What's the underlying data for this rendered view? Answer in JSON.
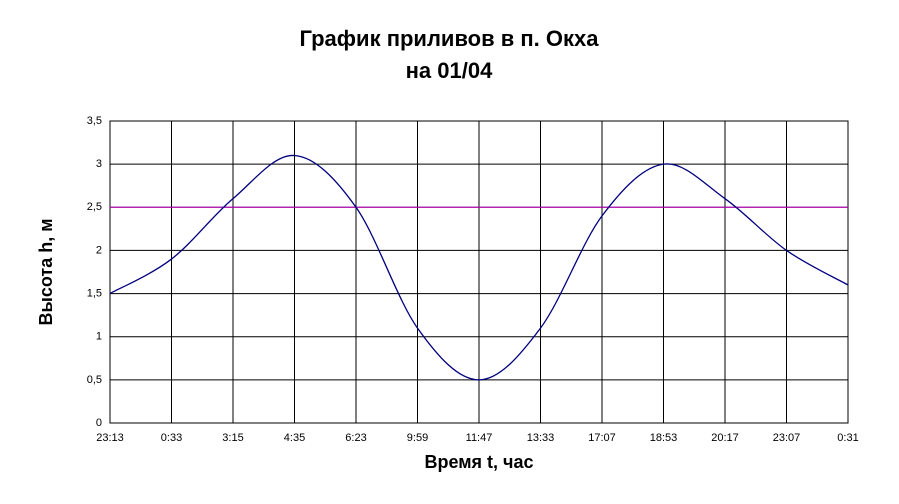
{
  "chart_data": {
    "type": "line",
    "title": [
      "График приливов в п. Окха",
      "на 01/04"
    ],
    "x_label": "Время t, час",
    "y_label": "Высота h, м",
    "categories": [
      "23:13",
      "0:33",
      "3:15",
      "4:35",
      "6:23",
      "9:59",
      "11:47",
      "13:33",
      "17:07",
      "18:53",
      "20:17",
      "23:07",
      "0:31"
    ],
    "series": [
      {
        "color": "#000080",
        "values": [
          1.5,
          1.9,
          2.6,
          3.1,
          2.5,
          1.1,
          0.5,
          1.1,
          2.4,
          3.0,
          2.6,
          2.0,
          1.6
        ]
      }
    ],
    "reference_line": {
      "value": 2.5,
      "color": "#cc00cc"
    },
    "ylim": [
      0,
      3.5
    ],
    "yticks": [
      0,
      {
        "value": 0.5,
        "label": "0,5"
      },
      1,
      {
        "value": 1.5,
        "label": "1,5"
      },
      2,
      {
        "value": 2.5,
        "label": "2,5"
      },
      3,
      {
        "value": 3.5,
        "label": "3,5"
      }
    ],
    "grid": true
  }
}
